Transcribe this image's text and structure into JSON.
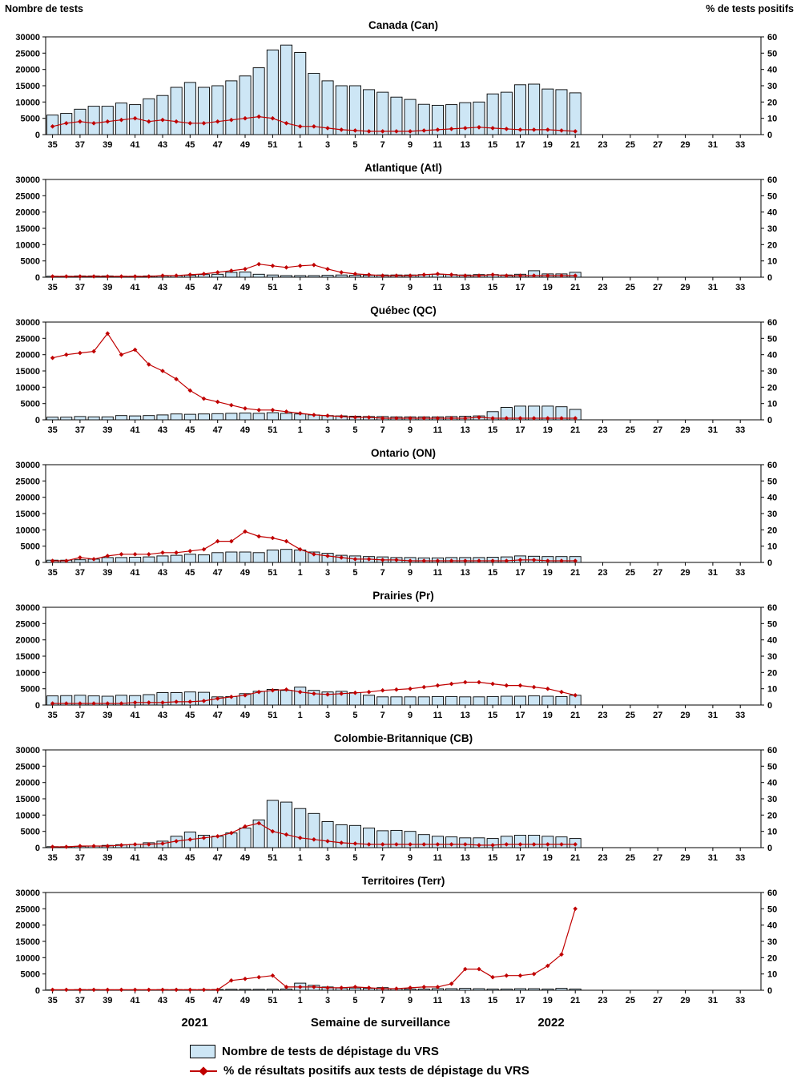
{
  "page": {
    "left_axis_title": "Nombre de tests",
    "right_axis_title": "% de tests positifs",
    "x_axis_title": "Semaine de surveillance",
    "year_left": "2021",
    "year_right": "2022",
    "legend": {
      "bar_label": "Nombre de tests de dépistage du VRS",
      "line_label": "% de résultats positifs aux tests de dépistage du VRS"
    },
    "colors": {
      "bar_fill": "#CDE6F5",
      "bar_stroke": "#000000",
      "line": "#C00000"
    }
  },
  "axes": {
    "ylim_left": [
      0,
      30000
    ],
    "yticks_left": [
      0,
      5000,
      10000,
      15000,
      20000,
      25000,
      30000
    ],
    "ylim_right": [
      0,
      60
    ],
    "yticks_right": [
      0,
      10,
      20,
      30,
      40,
      50,
      60
    ],
    "x_tick_weeks": [
      35,
      37,
      39,
      41,
      43,
      45,
      47,
      49,
      51,
      1,
      3,
      5,
      7,
      9,
      11,
      13,
      15,
      17,
      19,
      21,
      23,
      25,
      27,
      29,
      31,
      33
    ],
    "data_weeks": [
      35,
      36,
      37,
      38,
      39,
      40,
      41,
      42,
      43,
      44,
      45,
      46,
      47,
      48,
      49,
      50,
      51,
      52,
      1,
      2,
      3,
      4,
      5,
      6,
      7,
      8,
      9,
      10,
      11,
      12,
      13,
      14,
      15,
      16,
      17,
      18,
      19,
      20,
      21
    ]
  },
  "chart_data": [
    {
      "type": "bar+line",
      "title": "Canada (Can)",
      "series_bar": "Nombre de tests",
      "series_line": "% de tests positifs",
      "tests": [
        6000,
        6500,
        7800,
        8700,
        8700,
        9700,
        9200,
        11000,
        12000,
        14500,
        16000,
        14500,
        15000,
        16500,
        18000,
        20500,
        26000,
        27500,
        25200,
        18800,
        16500,
        15000,
        15000,
        13800,
        13000,
        11500,
        10800,
        9300,
        9000,
        9200,
        9800,
        10000,
        12500,
        13000,
        15300,
        15500,
        14000,
        13800,
        12800
      ],
      "pct_positive": [
        5,
        7,
        8,
        7,
        8,
        9,
        10,
        8,
        9,
        8,
        7,
        7,
        8,
        9,
        10,
        11,
        10,
        7,
        5,
        5,
        4,
        3,
        2.5,
        2,
        2,
        2,
        2,
        2.5,
        3,
        3.5,
        4,
        4.5,
        4,
        3.5,
        3,
        3,
        3,
        2.5,
        2
      ]
    },
    {
      "type": "bar+line",
      "title": "Atlantique (Atl)",
      "series_bar": "Nombre de tests",
      "series_line": "% de tests positifs",
      "tests": [
        300,
        300,
        400,
        400,
        400,
        300,
        300,
        400,
        400,
        500,
        600,
        800,
        900,
        1500,
        1600,
        900,
        700,
        500,
        500,
        500,
        600,
        700,
        600,
        600,
        700,
        700,
        700,
        800,
        900,
        800,
        700,
        800,
        800,
        700,
        900,
        2000,
        1000,
        1000,
        1500
      ],
      "pct_positive": [
        0.5,
        0.5,
        0.5,
        0.5,
        0.5,
        0.5,
        0.5,
        0.5,
        1,
        1,
        1.5,
        2,
        3,
        4,
        5,
        8,
        7,
        6,
        7,
        7.5,
        5,
        3,
        2,
        1.5,
        1,
        1,
        1,
        1.5,
        2,
        1.5,
        1,
        1,
        1.5,
        1,
        1,
        1,
        1,
        1,
        1
      ]
    },
    {
      "type": "bar+line",
      "title": "Québec (QC)",
      "series_bar": "Nombre de tests",
      "series_line": "% de tests positifs",
      "tests": [
        800,
        800,
        1000,
        900,
        900,
        1300,
        1200,
        1300,
        1500,
        1800,
        1700,
        1800,
        1900,
        2000,
        2100,
        2000,
        2200,
        2000,
        1800,
        1500,
        1300,
        1200,
        1100,
        1000,
        1000,
        900,
        900,
        900,
        900,
        1000,
        1100,
        1200,
        2500,
        3800,
        4200,
        4200,
        4200,
        4000,
        3200
      ],
      "pct_positive": [
        38,
        40,
        41,
        42,
        53,
        40,
        43,
        34,
        30,
        25,
        18,
        13,
        11,
        9,
        7,
        6,
        6,
        5,
        4,
        3,
        2.5,
        2,
        1.5,
        1.5,
        1,
        1,
        1,
        1,
        1,
        1,
        1,
        1.5,
        1,
        1,
        1,
        1,
        1,
        1,
        1
      ]
    },
    {
      "type": "bar+line",
      "title": "Ontario (ON)",
      "series_bar": "Nombre de tests",
      "series_line": "% de tests positifs",
      "tests": [
        700,
        700,
        800,
        1000,
        1500,
        1500,
        1600,
        1700,
        2000,
        2200,
        2500,
        2300,
        3000,
        3200,
        3200,
        3000,
        3800,
        4000,
        3800,
        3200,
        2800,
        2200,
        2000,
        1800,
        1700,
        1500,
        1500,
        1400,
        1400,
        1500,
        1500,
        1500,
        1600,
        1700,
        2000,
        1900,
        1800,
        1800,
        1800
      ],
      "pct_positive": [
        1,
        1,
        3,
        2,
        4,
        5,
        5,
        5,
        6,
        6,
        7,
        8,
        13,
        13,
        19,
        16,
        15,
        13,
        8,
        5,
        4,
        3,
        2,
        2,
        1.5,
        1.5,
        1,
        1,
        1,
        1,
        1,
        1,
        1,
        1,
        1.5,
        1.5,
        1,
        1,
        1
      ]
    },
    {
      "type": "bar+line",
      "title": "Prairies (Pr)",
      "series_bar": "Nombre de tests",
      "series_line": "% de tests positifs",
      "tests": [
        2800,
        2900,
        3000,
        2800,
        2700,
        3000,
        2900,
        3200,
        3800,
        3800,
        4000,
        3900,
        2500,
        2600,
        3500,
        4200,
        4800,
        4500,
        5500,
        4500,
        4000,
        4200,
        3800,
        3000,
        2500,
        2500,
        2500,
        2500,
        2600,
        2600,
        2500,
        2500,
        2600,
        2700,
        2700,
        2800,
        2700,
        2600,
        3000
      ],
      "pct_positive": [
        1,
        1,
        1,
        1,
        1,
        1,
        1.5,
        1.5,
        1.5,
        2,
        2,
        2.5,
        4,
        5,
        6,
        8,
        9,
        9.5,
        8,
        7,
        6.5,
        7,
        7.5,
        8,
        9,
        9.5,
        10,
        11,
        12,
        13,
        14,
        14,
        13,
        12,
        12,
        11,
        10,
        8,
        6
      ]
    },
    {
      "type": "bar+line",
      "title": "Colombie-Britannique (CB)",
      "series_bar": "Nombre de tests",
      "series_line": "% de tests positifs",
      "tests": [
        300,
        300,
        400,
        500,
        700,
        900,
        1000,
        1500,
        2000,
        3500,
        4800,
        3800,
        3500,
        4500,
        6000,
        8500,
        14500,
        14000,
        12000,
        10500,
        8000,
        7000,
        6800,
        6000,
        5200,
        5300,
        5000,
        4000,
        3500,
        3300,
        3000,
        3000,
        2800,
        3500,
        3800,
        3800,
        3500,
        3300,
        2800
      ],
      "pct_positive": [
        0.5,
        0.5,
        1,
        1,
        1,
        1.5,
        2,
        2,
        2.5,
        4,
        5,
        6,
        7,
        9,
        13,
        15,
        10,
        8,
        6,
        5,
        4,
        3,
        2.5,
        2,
        2,
        2,
        2,
        2,
        2,
        2,
        2,
        1.5,
        1.5,
        2,
        2,
        2,
        2,
        2,
        2
      ]
    },
    {
      "type": "bar+line",
      "title": "Territoires (Terr)",
      "series_bar": "Nombre de tests",
      "series_line": "% de tests positifs",
      "tests": [
        100,
        100,
        200,
        200,
        150,
        150,
        150,
        150,
        200,
        200,
        200,
        200,
        250,
        300,
        300,
        300,
        350,
        400,
        2200,
        1500,
        1000,
        700,
        700,
        600,
        800,
        500,
        400,
        400,
        500,
        500,
        600,
        500,
        400,
        400,
        500,
        500,
        400,
        600,
        400
      ],
      "pct_positive": [
        0.3,
        0.3,
        0.3,
        0.3,
        0.3,
        0.3,
        0.3,
        0.3,
        0.3,
        0.3,
        0.3,
        0.3,
        0.3,
        6,
        7,
        8,
        9,
        2,
        2,
        2,
        1.5,
        1.5,
        2,
        1.5,
        1,
        1,
        1.5,
        2,
        2,
        4,
        13,
        13,
        8,
        9,
        9,
        10,
        15,
        22,
        50
      ]
    }
  ]
}
